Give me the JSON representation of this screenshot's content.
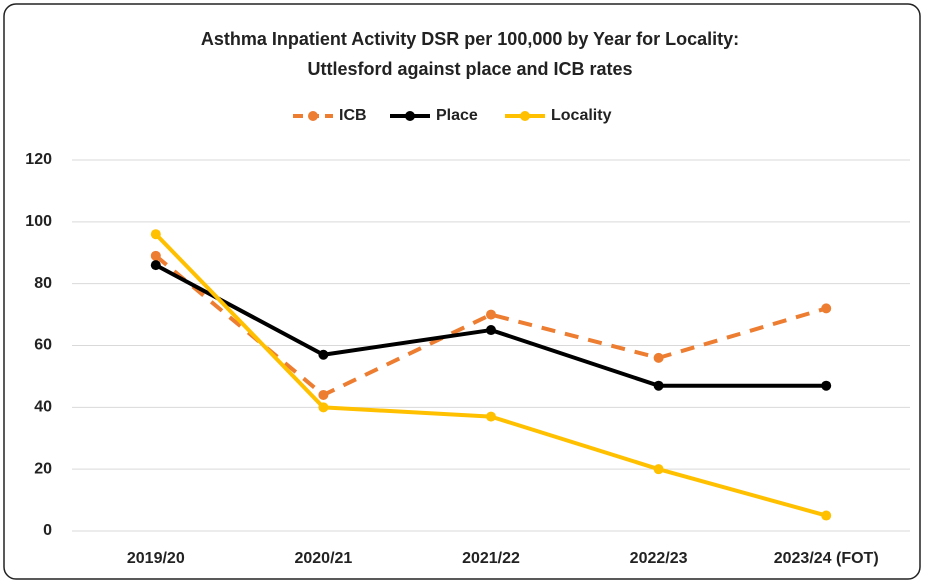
{
  "chart_data": {
    "type": "line",
    "title": [
      "Asthma Inpatient Activity DSR per 100,000 by Year for Locality:",
      "Uttlesford against place and ICB rates"
    ],
    "categories": [
      "2019/20",
      "2020/21",
      "2021/22",
      "2022/23",
      "2023/24 (FOT)"
    ],
    "series": [
      {
        "name": "ICB",
        "color": "#ED7D31",
        "dashed": true,
        "values": [
          89,
          44,
          70,
          56,
          72
        ]
      },
      {
        "name": "Place",
        "color": "#000000",
        "dashed": false,
        "values": [
          86,
          57,
          65,
          47,
          47
        ]
      },
      {
        "name": "Locality",
        "color": "#FFC000",
        "dashed": false,
        "values": [
          96,
          40,
          37,
          20,
          5
        ]
      }
    ],
    "ylim": [
      0,
      120
    ],
    "yticks": [
      0,
      20,
      40,
      60,
      80,
      100,
      120
    ],
    "grid": true,
    "legend": "top"
  }
}
